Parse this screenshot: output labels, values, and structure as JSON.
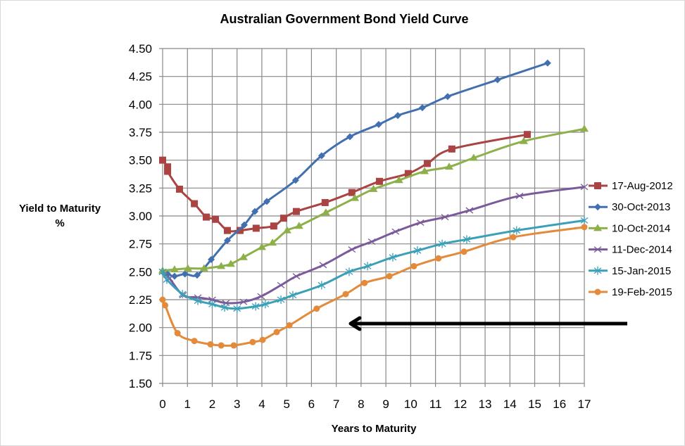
{
  "chart_data": {
    "type": "line",
    "title": "Australian Government Bond Yield Curve",
    "xlabel": "Years to Maturity",
    "ylabel": [
      "Yield to Maturity",
      "%"
    ],
    "xlim": [
      0,
      17
    ],
    "ylim": [
      1.5,
      4.5
    ],
    "xticks": [
      "0",
      "1",
      "2",
      "3",
      "4",
      "5",
      "6",
      "7",
      "8",
      "9",
      "10",
      "11",
      "12",
      "13",
      "14",
      "15",
      "16",
      "17"
    ],
    "yticks": [
      "1.50",
      "1.75",
      "2.00",
      "2.25",
      "2.50",
      "2.75",
      "3.00",
      "3.25",
      "3.50",
      "3.75",
      "4.00",
      "4.25",
      "4.50"
    ],
    "grid": true,
    "legend_position": "right",
    "annotation": "arrow pointing left at 19-Feb-2015 curve near 7 years",
    "series": [
      {
        "name": "17-Aug-2012",
        "color": "#a94442",
        "marker": "square",
        "x": [
          0,
          0.2,
          0.2,
          0.68,
          1.28,
          1.76,
          2.13,
          2.61,
          3.12,
          3.77,
          4.48,
          4.88,
          5.39,
          6.55,
          7.63,
          8.74,
          9.9,
          10.67,
          11.66,
          14.7
        ],
        "y": [
          3.5,
          3.44,
          3.4,
          3.24,
          3.11,
          2.99,
          2.97,
          2.87,
          2.87,
          2.89,
          2.91,
          2.98,
          3.04,
          3.12,
          3.21,
          3.31,
          3.38,
          3.47,
          3.6,
          3.73
        ]
      },
      {
        "name": "30-Oct-2013",
        "color": "#4170b0",
        "marker": "diamond",
        "x": [
          0,
          0.2,
          0.48,
          0.9,
          1.39,
          1.96,
          2.61,
          3.29,
          3.72,
          4.2,
          5.36,
          6.41,
          7.55,
          8.71,
          9.48,
          10.47,
          11.49,
          13.5,
          15.52
        ],
        "y": [
          2.5,
          2.48,
          2.46,
          2.48,
          2.47,
          2.61,
          2.78,
          2.92,
          3.04,
          3.13,
          3.32,
          3.54,
          3.71,
          3.82,
          3.9,
          3.97,
          4.07,
          4.22,
          4.37
        ]
      },
      {
        "name": "10-Oct-2014",
        "color": "#8db04a",
        "marker": "triangle",
        "x": [
          0,
          0.48,
          1.02,
          1.67,
          2.36,
          2.75,
          3.26,
          4.0,
          4.43,
          5.02,
          5.5,
          6.58,
          7.75,
          8.5,
          9.53,
          10.56,
          11.55,
          12.54,
          14.56,
          17
        ],
        "y": [
          2.51,
          2.52,
          2.53,
          2.53,
          2.55,
          2.57,
          2.63,
          2.72,
          2.76,
          2.87,
          2.91,
          3.03,
          3.16,
          3.24,
          3.32,
          3.4,
          3.44,
          3.52,
          3.67,
          3.78
        ]
      },
      {
        "name": "11-Dec-2014",
        "color": "#7a5a9a",
        "marker": "x",
        "x": [
          0,
          0.28,
          0.82,
          1.42,
          2.0,
          2.55,
          3.26,
          3.97,
          4.77,
          5.39,
          6.47,
          7.63,
          8.43,
          9.39,
          10.39,
          11.38,
          12.37,
          14.39,
          17
        ],
        "y": [
          2.5,
          2.44,
          2.29,
          2.27,
          2.25,
          2.22,
          2.23,
          2.28,
          2.38,
          2.46,
          2.56,
          2.7,
          2.77,
          2.86,
          2.94,
          2.99,
          3.05,
          3.18,
          3.26
        ]
      },
      {
        "name": "15-Jan-2015",
        "color": "#3aa0b8",
        "marker": "star",
        "x": [
          0,
          0.17,
          0.8,
          1.42,
          2.0,
          2.5,
          3.0,
          3.75,
          4.14,
          4.77,
          5.25,
          6.41,
          7.52,
          8.26,
          9.28,
          10.27,
          11.27,
          12.26,
          14.27,
          17
        ],
        "y": [
          2.5,
          2.43,
          2.3,
          2.24,
          2.21,
          2.18,
          2.17,
          2.19,
          2.21,
          2.25,
          2.29,
          2.38,
          2.5,
          2.55,
          2.63,
          2.69,
          2.75,
          2.79,
          2.87,
          2.96
        ]
      },
      {
        "name": "19-Feb-2015",
        "color": "#e38b3a",
        "marker": "circle",
        "x": [
          0,
          0.1,
          0.6,
          1.28,
          1.93,
          2.36,
          2.87,
          3.63,
          4.03,
          4.6,
          5.11,
          6.21,
          7.38,
          8.14,
          9.14,
          10.13,
          11.12,
          12.15,
          14.13,
          17
        ],
        "y": [
          2.25,
          2.2,
          1.95,
          1.88,
          1.85,
          1.84,
          1.84,
          1.87,
          1.89,
          1.96,
          2.02,
          2.17,
          2.3,
          2.4,
          2.46,
          2.55,
          2.62,
          2.68,
          2.81,
          2.9
        ]
      }
    ]
  }
}
